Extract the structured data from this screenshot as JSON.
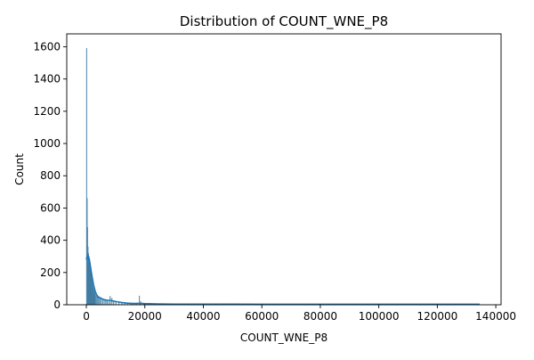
{
  "chart_data": {
    "type": "histogram",
    "title": "Distribution of COUNT_WNE_P8",
    "xlabel": "COUNT_WNE_P8",
    "ylabel": "Count",
    "xlim": [
      -6700,
      141800
    ],
    "ylim": [
      0,
      1680
    ],
    "xticks": [
      0,
      20000,
      40000,
      60000,
      80000,
      100000,
      120000,
      140000
    ],
    "xtick_labels": [
      "0",
      "20000",
      "40000",
      "60000",
      "80000",
      "100000",
      "120000",
      "140000"
    ],
    "yticks": [
      0,
      200,
      400,
      600,
      800,
      1000,
      1200,
      1400,
      1600
    ],
    "ytick_labels": [
      "0",
      "200",
      "400",
      "600",
      "800",
      "1000",
      "1200",
      "1400",
      "1600"
    ],
    "grid": false,
    "bin_width": 140,
    "bins": [
      {
        "x": 0,
        "count": 1590
      },
      {
        "x": 140,
        "count": 660
      },
      {
        "x": 280,
        "count": 480
      },
      {
        "x": 420,
        "count": 360
      },
      {
        "x": 560,
        "count": 320
      },
      {
        "x": 700,
        "count": 300
      },
      {
        "x": 840,
        "count": 290
      },
      {
        "x": 980,
        "count": 280
      },
      {
        "x": 1120,
        "count": 260
      },
      {
        "x": 1260,
        "count": 240
      },
      {
        "x": 1400,
        "count": 230
      },
      {
        "x": 1540,
        "count": 210
      },
      {
        "x": 1680,
        "count": 190
      },
      {
        "x": 1820,
        "count": 160
      },
      {
        "x": 1960,
        "count": 140
      },
      {
        "x": 2100,
        "count": 120
      },
      {
        "x": 2240,
        "count": 105
      },
      {
        "x": 2380,
        "count": 95
      },
      {
        "x": 2520,
        "count": 85
      },
      {
        "x": 2660,
        "count": 80
      },
      {
        "x": 2800,
        "count": 70
      },
      {
        "x": 3000,
        "count": 62
      },
      {
        "x": 3300,
        "count": 55
      },
      {
        "x": 3600,
        "count": 50
      },
      {
        "x": 3900,
        "count": 45
      },
      {
        "x": 4200,
        "count": 42
      },
      {
        "x": 4600,
        "count": 38
      },
      {
        "x": 5000,
        "count": 34
      },
      {
        "x": 5500,
        "count": 30
      },
      {
        "x": 6000,
        "count": 28
      },
      {
        "x": 6500,
        "count": 25
      },
      {
        "x": 7000,
        "count": 23
      },
      {
        "x": 7500,
        "count": 20
      },
      {
        "x": 8000,
        "count": 52
      },
      {
        "x": 8600,
        "count": 40
      },
      {
        "x": 9200,
        "count": 25
      },
      {
        "x": 10000,
        "count": 18
      },
      {
        "x": 11000,
        "count": 14
      },
      {
        "x": 12000,
        "count": 12
      },
      {
        "x": 13000,
        "count": 10
      },
      {
        "x": 14000,
        "count": 8
      },
      {
        "x": 15000,
        "count": 7
      },
      {
        "x": 16000,
        "count": 6
      },
      {
        "x": 17000,
        "count": 6
      },
      {
        "x": 18000,
        "count": 55
      },
      {
        "x": 18500,
        "count": 20
      },
      {
        "x": 19500,
        "count": 8
      },
      {
        "x": 21000,
        "count": 5
      },
      {
        "x": 23000,
        "count": 4
      },
      {
        "x": 26000,
        "count": 3
      },
      {
        "x": 30000,
        "count": 3
      },
      {
        "x": 35000,
        "count": 2
      },
      {
        "x": 40000,
        "count": 3
      },
      {
        "x": 45000,
        "count": 2
      },
      {
        "x": 50000,
        "count": 3
      },
      {
        "x": 60000,
        "count": 2
      },
      {
        "x": 70000,
        "count": 2
      },
      {
        "x": 80000,
        "count": 2
      },
      {
        "x": 90000,
        "count": 2
      },
      {
        "x": 100000,
        "count": 2
      },
      {
        "x": 110000,
        "count": 2
      },
      {
        "x": 120000,
        "count": 2
      },
      {
        "x": 130000,
        "count": 2
      },
      {
        "x": 134000,
        "count": 2
      }
    ],
    "kde": [
      {
        "x": 0,
        "y": 280
      },
      {
        "x": 300,
        "y": 300
      },
      {
        "x": 600,
        "y": 305
      },
      {
        "x": 900,
        "y": 290
      },
      {
        "x": 1200,
        "y": 260
      },
      {
        "x": 1600,
        "y": 215
      },
      {
        "x": 2000,
        "y": 170
      },
      {
        "x": 2500,
        "y": 120
      },
      {
        "x": 3000,
        "y": 85
      },
      {
        "x": 3500,
        "y": 62
      },
      {
        "x": 4000,
        "y": 50
      },
      {
        "x": 5000,
        "y": 40
      },
      {
        "x": 6000,
        "y": 32
      },
      {
        "x": 7000,
        "y": 28
      },
      {
        "x": 8000,
        "y": 27
      },
      {
        "x": 9000,
        "y": 24
      },
      {
        "x": 10000,
        "y": 20
      },
      {
        "x": 12000,
        "y": 14
      },
      {
        "x": 14000,
        "y": 10
      },
      {
        "x": 16000,
        "y": 8
      },
      {
        "x": 18000,
        "y": 9
      },
      {
        "x": 20000,
        "y": 7
      },
      {
        "x": 24000,
        "y": 5
      },
      {
        "x": 30000,
        "y": 4
      },
      {
        "x": 40000,
        "y": 4
      },
      {
        "x": 50000,
        "y": 4
      },
      {
        "x": 60000,
        "y": 3
      },
      {
        "x": 80000,
        "y": 3
      },
      {
        "x": 100000,
        "y": 3
      },
      {
        "x": 120000,
        "y": 3
      },
      {
        "x": 134500,
        "y": 3
      }
    ],
    "colors": {
      "bar_fill": "#4c94c0",
      "bar_edge": "#3a6e8f",
      "kde_line": "#1f77b4",
      "axis": "#000000"
    }
  }
}
